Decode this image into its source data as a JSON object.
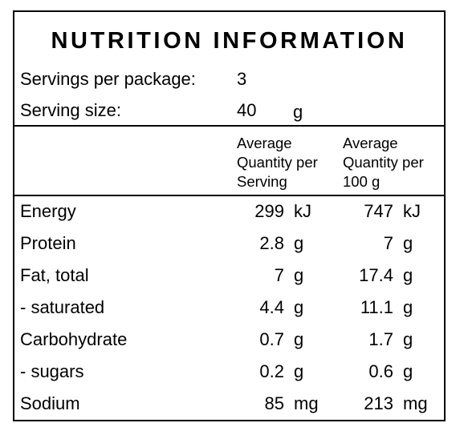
{
  "title": "NUTRITION INFORMATION",
  "servings": {
    "label": "Servings per package:",
    "value": 3
  },
  "serving_size": {
    "label": "Serving size:",
    "value": 40,
    "unit": "g"
  },
  "table": {
    "columns": [
      "Average Quantity per Serving",
      "Average Quantity per 100 g"
    ],
    "rows": [
      {
        "name": "Energy",
        "per_serving": 299,
        "per_serving_unit": "kJ",
        "per_100g": 747,
        "per_100g_unit": "kJ"
      },
      {
        "name": "Protein",
        "per_serving": 2.8,
        "per_serving_unit": "g",
        "per_100g": 7,
        "per_100g_unit": "g"
      },
      {
        "name": "Fat, total",
        "per_serving": 7,
        "per_serving_unit": "g",
        "per_100g": 17.4,
        "per_100g_unit": "g"
      },
      {
        "name": "- saturated",
        "per_serving": 4.4,
        "per_serving_unit": "g",
        "per_100g": 11.1,
        "per_100g_unit": "g"
      },
      {
        "name": "Carbohydrate",
        "per_serving": 0.7,
        "per_serving_unit": "g",
        "per_100g": 1.7,
        "per_100g_unit": "g"
      },
      {
        "name": "- sugars",
        "per_serving": 0.2,
        "per_serving_unit": "g",
        "per_100g": 0.6,
        "per_100g_unit": "g"
      },
      {
        "name": "Sodium",
        "per_serving": 85,
        "per_serving_unit": "mg",
        "per_100g": 213,
        "per_100g_unit": "mg"
      }
    ]
  }
}
